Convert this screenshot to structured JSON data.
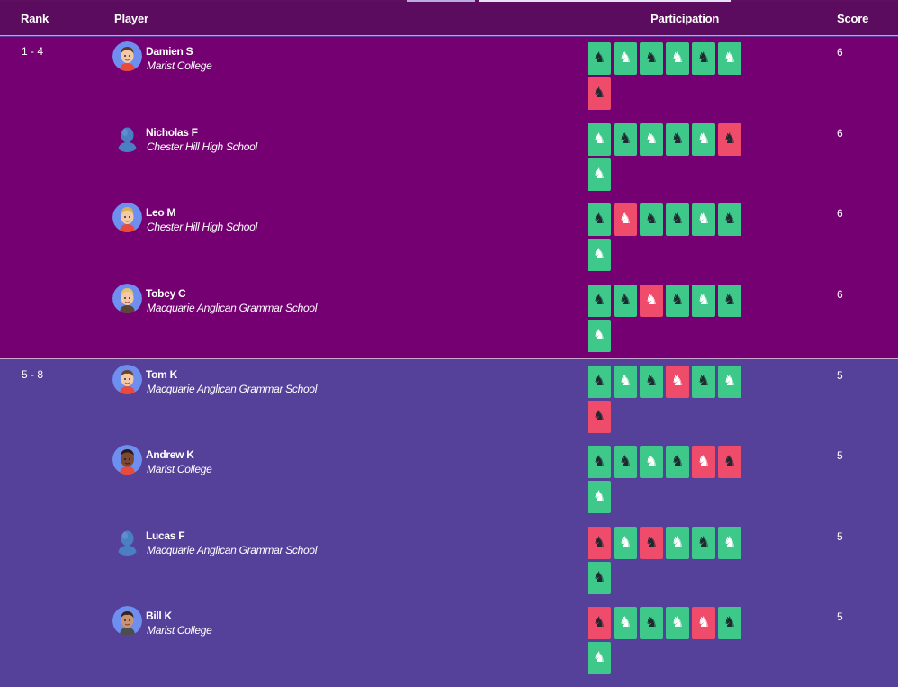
{
  "colors": {
    "header_bg": "#5c0c5e",
    "group_1_bg": "#750072",
    "group_2_bg": "#55409a",
    "win": "#3ec98a",
    "loss": "#ef4b6b"
  },
  "header": {
    "rank": "Rank",
    "player": "Player",
    "participation": "Participation",
    "score": "Score"
  },
  "groups": [
    {
      "rank": "1 - 4",
      "players": [
        {
          "name": "Damien S",
          "school": "Marist College",
          "score": "6",
          "avatar": "cartoon-boy-avatar",
          "games": [
            {
              "r": "win",
              "piece": "black-knight"
            },
            {
              "r": "win",
              "piece": "white-knight"
            },
            {
              "r": "win",
              "piece": "black-knight"
            },
            {
              "r": "win",
              "piece": "white-knight"
            },
            {
              "r": "win",
              "piece": "black-knight"
            },
            {
              "r": "win",
              "piece": "white-knight"
            },
            {
              "r": "loss",
              "piece": "black-knight"
            }
          ]
        },
        {
          "name": "Nicholas F",
          "school": "Chester Hill High School",
          "score": "6",
          "avatar": "default-silhouette-avatar",
          "games": [
            {
              "r": "win",
              "piece": "white-knight"
            },
            {
              "r": "win",
              "piece": "black-knight"
            },
            {
              "r": "win",
              "piece": "white-knight"
            },
            {
              "r": "win",
              "piece": "black-knight"
            },
            {
              "r": "win",
              "piece": "white-knight"
            },
            {
              "r": "loss",
              "piece": "black-knight"
            },
            {
              "r": "win",
              "piece": "white-knight"
            }
          ]
        },
        {
          "name": "Leo M",
          "school": "Chester Hill High School",
          "score": "6",
          "avatar": "cartoon-boy-avatar",
          "games": [
            {
              "r": "win",
              "piece": "black-knight"
            },
            {
              "r": "loss",
              "piece": "white-knight"
            },
            {
              "r": "win",
              "piece": "black-knight"
            },
            {
              "r": "win",
              "piece": "black-knight"
            },
            {
              "r": "win",
              "piece": "white-knight"
            },
            {
              "r": "win",
              "piece": "black-knight"
            },
            {
              "r": "win",
              "piece": "white-knight"
            }
          ]
        },
        {
          "name": "Tobey C",
          "school": "Macquarie Anglican Grammar School",
          "score": "6",
          "avatar": "cartoon-boy-avatar",
          "games": [
            {
              "r": "win",
              "piece": "black-knight"
            },
            {
              "r": "win",
              "piece": "black-knight"
            },
            {
              "r": "loss",
              "piece": "white-knight"
            },
            {
              "r": "win",
              "piece": "black-knight"
            },
            {
              "r": "win",
              "piece": "white-knight"
            },
            {
              "r": "win",
              "piece": "black-knight"
            },
            {
              "r": "win",
              "piece": "white-knight"
            }
          ]
        }
      ]
    },
    {
      "rank": "5 - 8",
      "players": [
        {
          "name": "Tom K",
          "school": "Macquarie Anglican Grammar School",
          "score": "5",
          "avatar": "cartoon-boy-avatar",
          "games": [
            {
              "r": "win",
              "piece": "black-knight"
            },
            {
              "r": "win",
              "piece": "white-knight"
            },
            {
              "r": "win",
              "piece": "black-knight"
            },
            {
              "r": "loss",
              "piece": "white-knight"
            },
            {
              "r": "win",
              "piece": "black-knight"
            },
            {
              "r": "win",
              "piece": "white-knight"
            },
            {
              "r": "loss",
              "piece": "black-knight"
            }
          ]
        },
        {
          "name": "Andrew K",
          "school": "Marist College",
          "score": "5",
          "avatar": "cartoon-boy-avatar",
          "games": [
            {
              "r": "win",
              "piece": "black-knight"
            },
            {
              "r": "win",
              "piece": "black-knight"
            },
            {
              "r": "win",
              "piece": "white-knight"
            },
            {
              "r": "win",
              "piece": "black-knight"
            },
            {
              "r": "loss",
              "piece": "white-knight"
            },
            {
              "r": "loss",
              "piece": "black-knight"
            },
            {
              "r": "win",
              "piece": "white-knight"
            }
          ]
        },
        {
          "name": "Lucas F",
          "school": "Macquarie Anglican Grammar School",
          "score": "5",
          "avatar": "default-silhouette-avatar",
          "games": [
            {
              "r": "loss",
              "piece": "black-knight"
            },
            {
              "r": "win",
              "piece": "white-knight"
            },
            {
              "r": "loss",
              "piece": "black-knight"
            },
            {
              "r": "win",
              "piece": "white-knight"
            },
            {
              "r": "win",
              "piece": "black-knight"
            },
            {
              "r": "win",
              "piece": "white-knight"
            },
            {
              "r": "win",
              "piece": "black-knight"
            }
          ]
        },
        {
          "name": "Bill K",
          "school": "Marist College",
          "score": "5",
          "avatar": "cartoon-boy-avatar",
          "games": [
            {
              "r": "loss",
              "piece": "black-knight"
            },
            {
              "r": "win",
              "piece": "white-knight"
            },
            {
              "r": "win",
              "piece": "black-knight"
            },
            {
              "r": "win",
              "piece": "white-knight"
            },
            {
              "r": "loss",
              "piece": "white-knight"
            },
            {
              "r": "win",
              "piece": "black-knight"
            },
            {
              "r": "win",
              "piece": "white-knight"
            }
          ]
        }
      ]
    }
  ]
}
